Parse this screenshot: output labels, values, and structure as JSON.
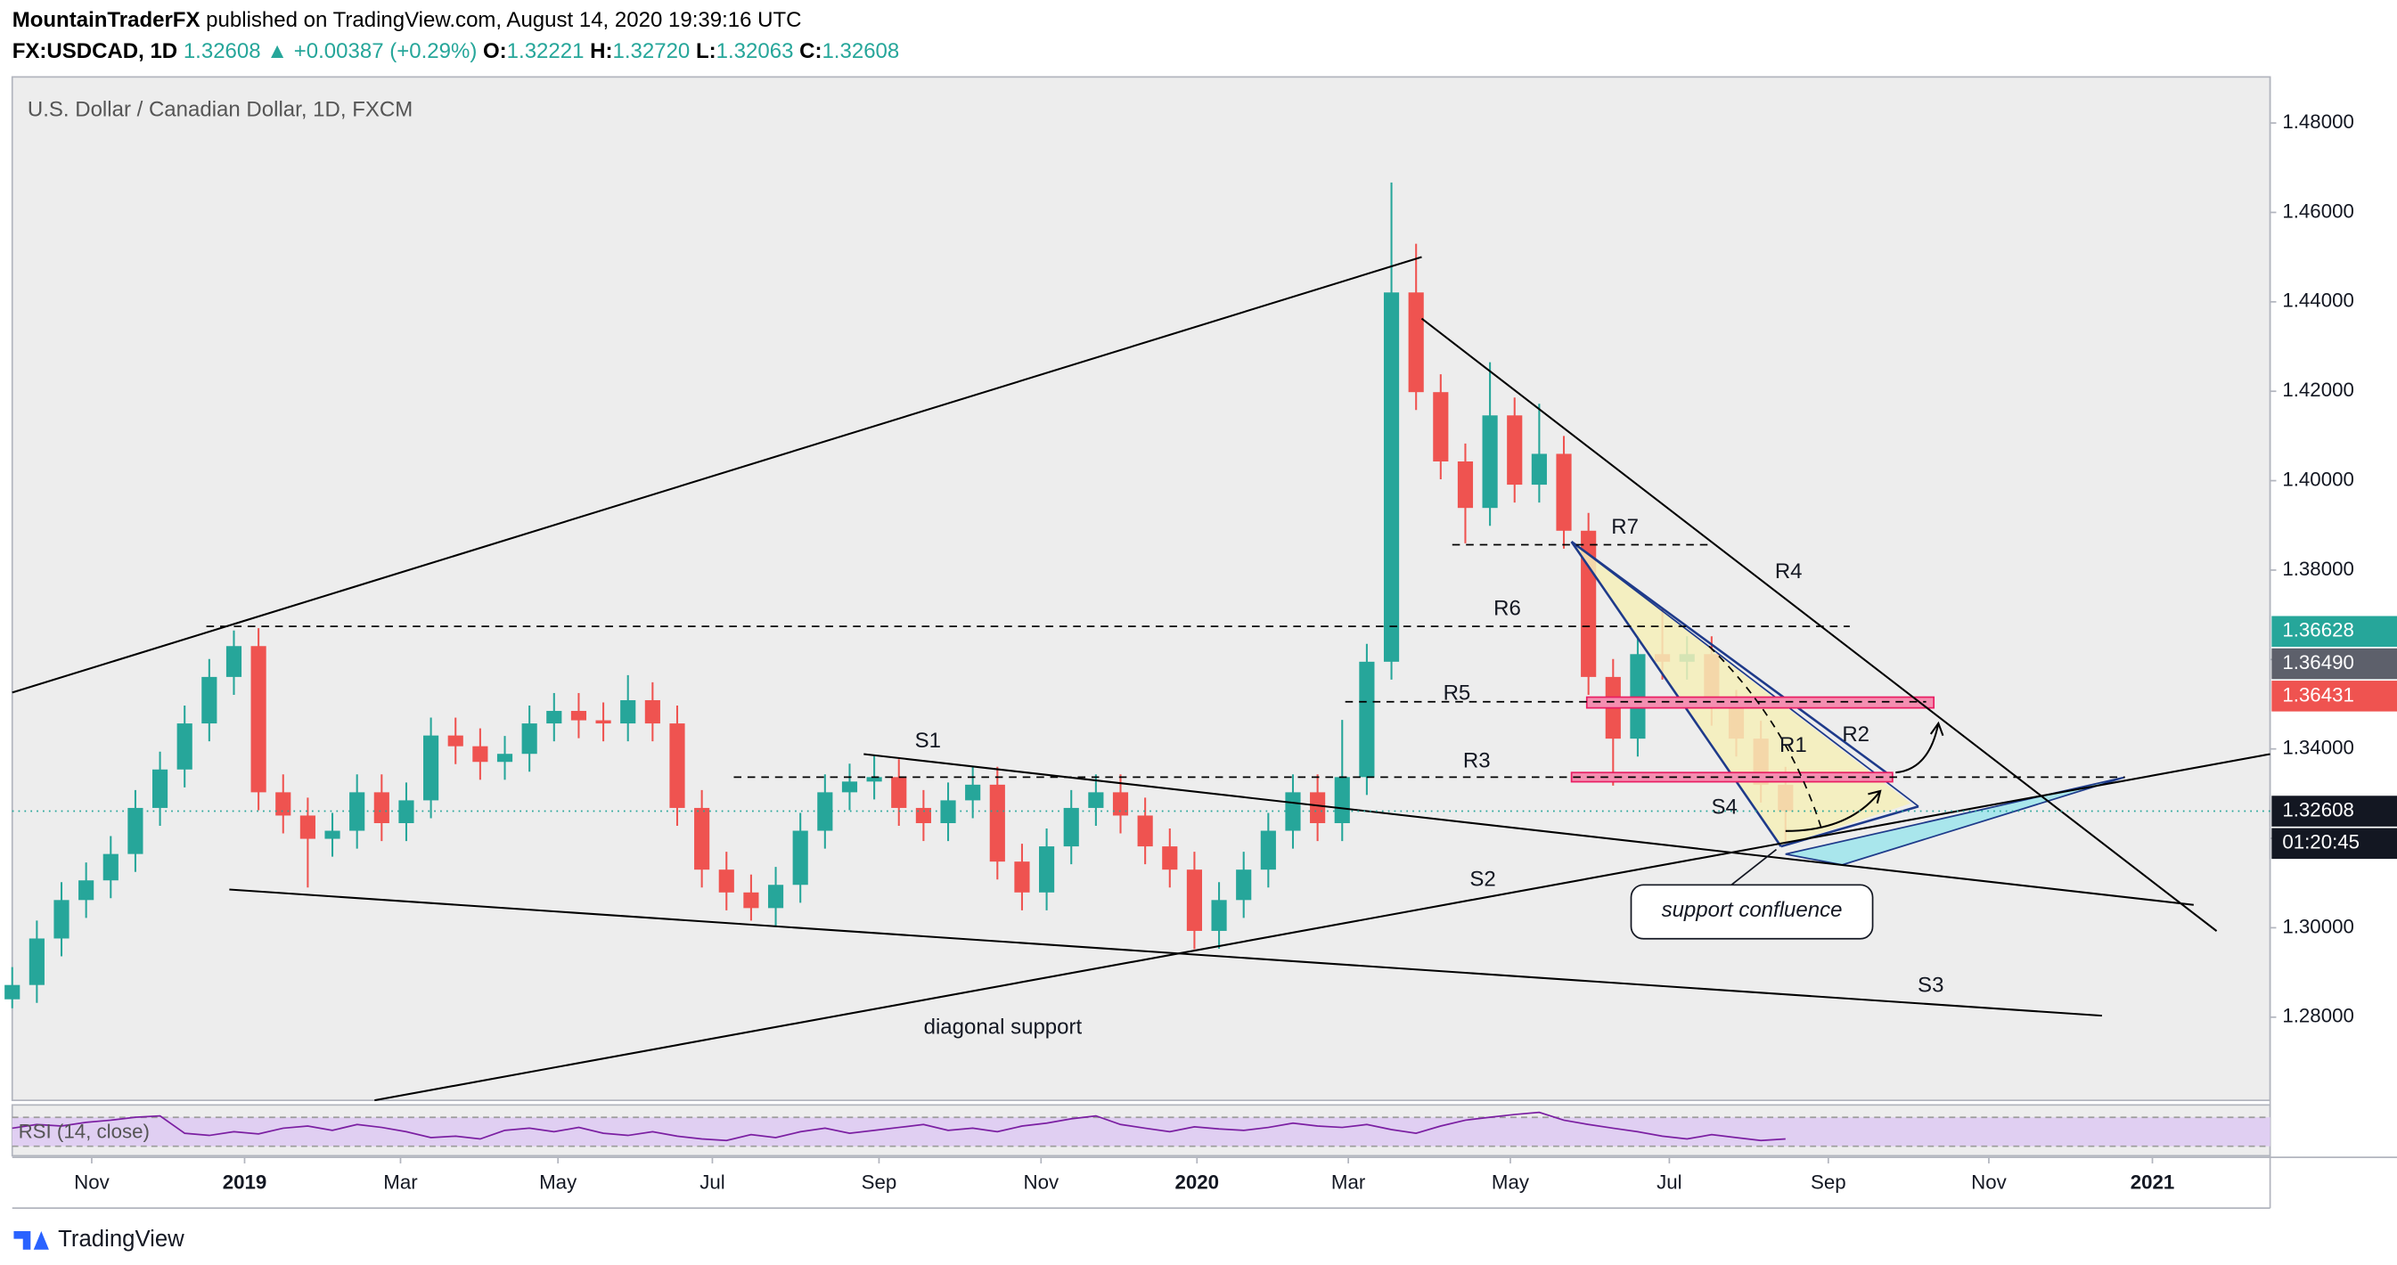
{
  "header": {
    "author": "MountainTraderFX",
    "published": "published on TradingView.com, August 14, 2020 19:39:16 UTC",
    "symbol": "FX:USDCAD, 1D",
    "last": "1.32608",
    "change": "▲ +0.00387 (+0.29%)",
    "open_label": "O:",
    "open": "1.32221",
    "high_label": "H:",
    "high": "1.32720",
    "low_label": "L:",
    "low": "1.32063",
    "close_label": "C:",
    "close": "1.32608"
  },
  "chart_data": {
    "type": "candlestick",
    "title": "U.S. Dollar / Canadian Dollar, 1D, FXCM",
    "open": [
      1.284,
      1.2872,
      1.2976,
      1.3062,
      1.3106,
      1.3165,
      1.3268,
      1.3354,
      1.3457,
      1.3561,
      1.363,
      1.3303,
      1.3251,
      1.3199,
      1.3217,
      1.3303,
      1.3234,
      1.3285,
      1.343,
      1.3406,
      1.3371,
      1.3389,
      1.3457,
      1.3485,
      1.3464,
      1.3457,
      1.3509,
      1.3457,
      1.3268,
      1.313,
      1.3079,
      1.3044,
      1.3096,
      1.3217,
      1.3303,
      1.3327,
      1.3337,
      1.3268,
      1.3234,
      1.3285,
      1.332,
      1.3148,
      1.3079,
      1.3182,
      1.3268,
      1.3303,
      1.3251,
      1.3182,
      1.313,
      1.2993,
      1.3062,
      1.313,
      1.3217,
      1.3303,
      1.3234,
      1.3337,
      1.3595,
      1.4421,
      1.4198,
      1.4043,
      1.3939,
      1.4146,
      1.3991,
      1.406,
      1.3888,
      1.3561,
      1.3423,
      1.3612,
      1.3595,
      1.3612,
      1.3492,
      1.3423,
      1.332
    ],
    "high": [
      1.2912,
      1.3016,
      1.3102,
      1.3146,
      1.3205,
      1.3308,
      1.3394,
      1.3497,
      1.3601,
      1.3665,
      1.367,
      1.3343,
      1.3291,
      1.3257,
      1.3343,
      1.3343,
      1.3325,
      1.347,
      1.347,
      1.3446,
      1.3429,
      1.3497,
      1.3525,
      1.3525,
      1.3504,
      1.3565,
      1.3549,
      1.3497,
      1.3308,
      1.317,
      1.3119,
      1.3136,
      1.3257,
      1.3343,
      1.3367,
      1.3384,
      1.3377,
      1.3308,
      1.3325,
      1.336,
      1.336,
      1.3188,
      1.3222,
      1.3308,
      1.3343,
      1.3343,
      1.3291,
      1.3222,
      1.317,
      1.3102,
      1.317,
      1.3257,
      1.3343,
      1.3343,
      1.3465,
      1.3635,
      1.4667,
      1.453,
      1.4238,
      1.4083,
      1.4265,
      1.4186,
      1.4172,
      1.41,
      1.3928,
      1.3601,
      1.3652,
      1.3716,
      1.3652,
      1.3652,
      1.3532,
      1.3463,
      1.336
    ],
    "low": [
      1.282,
      1.2832,
      1.2936,
      1.3022,
      1.3066,
      1.3125,
      1.3228,
      1.3314,
      1.3417,
      1.3521,
      1.3263,
      1.3211,
      1.309,
      1.3159,
      1.3177,
      1.3194,
      1.3194,
      1.3245,
      1.3366,
      1.3331,
      1.3331,
      1.3349,
      1.3417,
      1.3424,
      1.3417,
      1.3417,
      1.3417,
      1.3228,
      1.309,
      1.3039,
      1.3016,
      1.3004,
      1.3056,
      1.3177,
      1.3263,
      1.3287,
      1.3228,
      1.3194,
      1.3194,
      1.3245,
      1.3108,
      1.3039,
      1.3039,
      1.3142,
      1.3228,
      1.3211,
      1.3142,
      1.309,
      1.2952,
      1.2953,
      1.3022,
      1.309,
      1.3177,
      1.3194,
      1.3194,
      1.3297,
      1.3555,
      1.4158,
      1.4003,
      1.386,
      1.3899,
      1.3951,
      1.3951,
      1.3848,
      1.3521,
      1.3318,
      1.3383,
      1.3555,
      1.3555,
      1.3452,
      1.3383,
      1.328,
      1.319
    ],
    "close": [
      1.2872,
      1.2976,
      1.3062,
      1.3106,
      1.3165,
      1.3268,
      1.3354,
      1.3457,
      1.3561,
      1.363,
      1.3303,
      1.3251,
      1.3199,
      1.3217,
      1.3303,
      1.3234,
      1.3285,
      1.343,
      1.3406,
      1.3371,
      1.3389,
      1.3457,
      1.3485,
      1.3464,
      1.3457,
      1.3509,
      1.3457,
      1.3268,
      1.313,
      1.3079,
      1.3044,
      1.3096,
      1.3217,
      1.3303,
      1.3327,
      1.3337,
      1.3268,
      1.3234,
      1.3285,
      1.332,
      1.3148,
      1.3079,
      1.3182,
      1.3268,
      1.3303,
      1.3251,
      1.3182,
      1.313,
      1.2993,
      1.3062,
      1.313,
      1.3217,
      1.3303,
      1.3234,
      1.3337,
      1.3595,
      1.4421,
      1.4198,
      1.4043,
      1.3939,
      1.4146,
      1.3991,
      1.406,
      1.3888,
      1.3561,
      1.3423,
      1.3612,
      1.3595,
      1.3612,
      1.3492,
      1.3423,
      1.332,
      1.3261
    ],
    "up_color": "#26a69a",
    "down_color": "#ef5350",
    "ylim": [
      1.2614,
      1.4903
    ],
    "yticks": [
      {
        "value": 1.28,
        "label": "1.28000"
      },
      {
        "value": 1.3,
        "label": "1.30000"
      },
      {
        "value": 1.32,
        "label": "1.32000"
      },
      {
        "value": 1.34,
        "label": "1.34000"
      },
      {
        "value": 1.36,
        "label": "1.36000"
      },
      {
        "value": 1.38,
        "label": "1.38000"
      },
      {
        "value": 1.4,
        "label": "1.40000"
      },
      {
        "value": 1.42,
        "label": "1.42000"
      },
      {
        "value": 1.44,
        "label": "1.44000"
      },
      {
        "value": 1.46,
        "label": "1.46000"
      },
      {
        "value": 1.48,
        "label": "1.48000"
      }
    ],
    "xticks": [
      "Nov",
      "2019",
      "Mar",
      "May",
      "Jul",
      "Sep",
      "Nov",
      "2020",
      "Mar",
      "May",
      "Jul",
      "Sep",
      "Nov",
      "2021"
    ],
    "price_labels": [
      {
        "value": 1.36628,
        "label": "1.36628",
        "color": "#26a69a"
      },
      {
        "value": 1.3649,
        "label": "1.36490",
        "color": "#5d606b"
      },
      {
        "value": 1.36431,
        "label": "1.36431",
        "color": "#ef5350"
      },
      {
        "value": 1.32608,
        "label": "1.32608",
        "color": "#131722"
      }
    ],
    "countdown": "01:20:45",
    "annotations": [
      "R7",
      "R4",
      "R6",
      "R5",
      "R3",
      "R2",
      "R1",
      "S1",
      "S4",
      "S2",
      "S3",
      "diagonal support",
      "support confluence"
    ],
    "rsi": {
      "label": "RSI (14, close)",
      "values": [
        55,
        60,
        58,
        63,
        66,
        70,
        72,
        48,
        45,
        50,
        47,
        55,
        58,
        52,
        60,
        56,
        50,
        42,
        44,
        40,
        52,
        55,
        50,
        56,
        48,
        45,
        50,
        44,
        40,
        38,
        46,
        42,
        50,
        55,
        48,
        52,
        56,
        60,
        52,
        55,
        50,
        58,
        62,
        68,
        72,
        60,
        55,
        50,
        57,
        54,
        52,
        56,
        62,
        58,
        56,
        60,
        53,
        48,
        58,
        66,
        70,
        74,
        77,
        66,
        60,
        55,
        50,
        44,
        40,
        46,
        42,
        38,
        40
      ],
      "ylim": [
        19,
        85
      ],
      "levels": [
        70,
        30
      ]
    }
  },
  "footer": {
    "brand": "TradingView"
  }
}
